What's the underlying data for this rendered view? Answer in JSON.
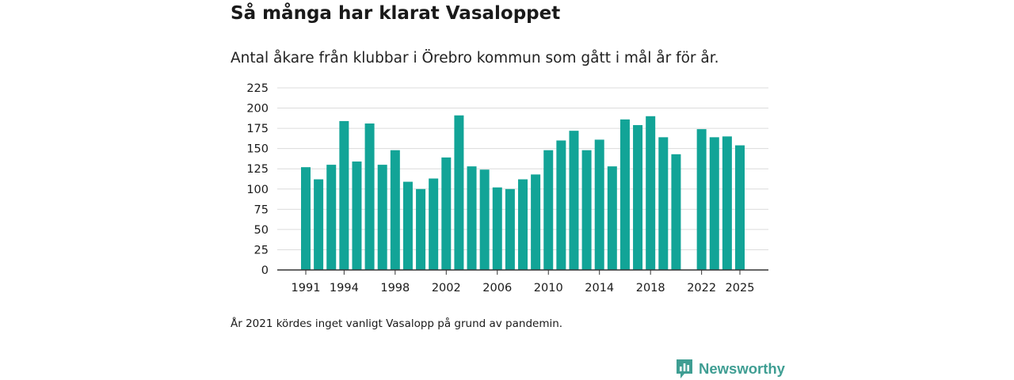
{
  "chart_data": {
    "type": "bar",
    "title": "Så många har klarat Vasaloppet",
    "subtitle": "Antal åkare från klubbar i Örebro kommun som gått i mål år för år.",
    "xlabel": "",
    "ylabel": "",
    "ylim": [
      0,
      225
    ],
    "yticks": [
      0,
      25,
      50,
      75,
      100,
      125,
      150,
      175,
      200,
      225
    ],
    "xtick_labels": [
      "1991",
      "1994",
      "1998",
      "2002",
      "2006",
      "2010",
      "2014",
      "2018",
      "2022",
      "2025"
    ],
    "grid": true,
    "bar_color": "#12a497",
    "x": [
      1991,
      1992,
      1993,
      1994,
      1995,
      1996,
      1997,
      1998,
      1999,
      2000,
      2001,
      2002,
      2003,
      2004,
      2005,
      2006,
      2007,
      2008,
      2009,
      2010,
      2011,
      2012,
      2013,
      2014,
      2015,
      2016,
      2017,
      2018,
      2019,
      2020,
      2022,
      2023,
      2024,
      2025
    ],
    "values": [
      127,
      112,
      130,
      184,
      134,
      181,
      130,
      148,
      109,
      100,
      113,
      139,
      191,
      128,
      124,
      102,
      100,
      112,
      118,
      148,
      160,
      172,
      148,
      161,
      128,
      186,
      179,
      190,
      164,
      143,
      174,
      164,
      165,
      154
    ]
  },
  "footnote": "År 2021 kördes inget vanligt Vasalopp på grund av pandemin.",
  "brand": {
    "name": "Newsworthy",
    "color": "#3f9e93",
    "icon": "bar-chart-speech-bubble-icon"
  }
}
